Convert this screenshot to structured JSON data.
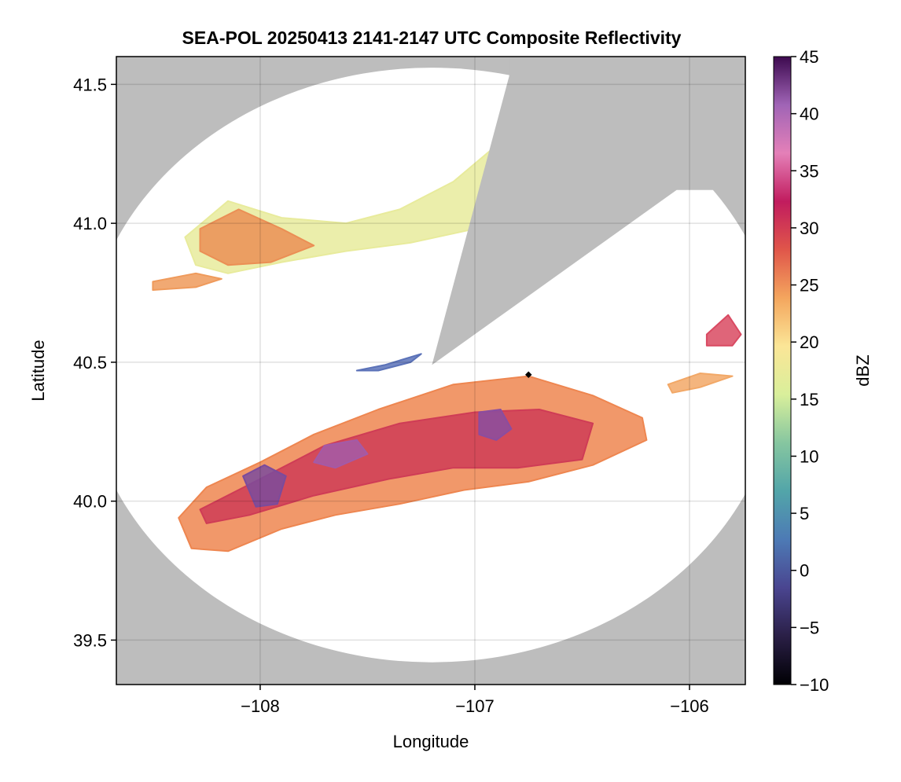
{
  "chart_data": {
    "type": "heatmap",
    "title": "SEA-POL 20250413 2141-2147 UTC Composite Reflectivity",
    "xlabel": "Longitude",
    "ylabel": "Latitude",
    "xlim": [
      -108.67,
      -105.74
    ],
    "ylim": [
      39.34,
      41.6
    ],
    "x_ticks": [
      -108,
      -107,
      -106
    ],
    "x_tick_labels": [
      "−108",
      "−107",
      "−106"
    ],
    "y_ticks": [
      39.5,
      40.0,
      40.5,
      41.0,
      41.5
    ],
    "y_tick_labels": [
      "39.5",
      "40.0",
      "40.5",
      "41.0",
      "41.5"
    ],
    "grid": true,
    "background_color": "#bdbdbd",
    "radar": {
      "center": [
        -107.2,
        40.49
      ],
      "range_lon": 1.62,
      "range_lat": 1.07,
      "blocked_sector": {
        "from": [
          -106.84,
          41.53
        ],
        "to": [
          -106.06,
          41.12
        ]
      },
      "marker": [
        -106.75,
        40.455
      ]
    },
    "echoes": [
      {
        "name": "main-band",
        "polygon": [
          [
            -108.38,
            39.94
          ],
          [
            -108.25,
            40.05
          ],
          [
            -108.0,
            40.14
          ],
          [
            -107.75,
            40.24
          ],
          [
            -107.45,
            40.33
          ],
          [
            -107.1,
            40.42
          ],
          [
            -106.75,
            40.45
          ],
          [
            -106.45,
            40.38
          ],
          [
            -106.22,
            40.3
          ],
          [
            -106.2,
            40.22
          ],
          [
            -106.45,
            40.13
          ],
          [
            -106.75,
            40.07
          ],
          [
            -107.05,
            40.04
          ],
          [
            -107.35,
            39.99
          ],
          [
            -107.65,
            39.95
          ],
          [
            -107.9,
            39.9
          ],
          [
            -108.15,
            39.82
          ],
          [
            -108.32,
            39.83
          ]
        ],
        "dbz": 22,
        "color": "#ee8650"
      },
      {
        "name": "band-core",
        "polygon": [
          [
            -108.28,
            39.97
          ],
          [
            -108.0,
            40.08
          ],
          [
            -107.7,
            40.2
          ],
          [
            -107.35,
            40.28
          ],
          [
            -107.0,
            40.32
          ],
          [
            -106.7,
            40.33
          ],
          [
            -106.45,
            40.28
          ],
          [
            -106.5,
            40.15
          ],
          [
            -106.8,
            40.12
          ],
          [
            -107.1,
            40.12
          ],
          [
            -107.4,
            40.08
          ],
          [
            -107.75,
            40.02
          ],
          [
            -108.05,
            39.95
          ],
          [
            -108.25,
            39.92
          ]
        ],
        "dbz": 30,
        "color": "#cf3c56"
      },
      {
        "name": "core-a",
        "polygon": [
          [
            -108.08,
            40.09
          ],
          [
            -107.98,
            40.13
          ],
          [
            -107.88,
            40.09
          ],
          [
            -107.92,
            39.99
          ],
          [
            -108.02,
            39.98
          ]
        ],
        "dbz": 38,
        "color": "#7b4b9c"
      },
      {
        "name": "core-b",
        "polygon": [
          [
            -106.98,
            40.32
          ],
          [
            -106.88,
            40.33
          ],
          [
            -106.83,
            40.26
          ],
          [
            -106.9,
            40.22
          ],
          [
            -106.98,
            40.24
          ]
        ],
        "dbz": 38,
        "color": "#8a4da0"
      },
      {
        "name": "core-c",
        "polygon": [
          [
            -107.7,
            40.2
          ],
          [
            -107.55,
            40.22
          ],
          [
            -107.5,
            40.17
          ],
          [
            -107.65,
            40.12
          ],
          [
            -107.75,
            40.14
          ]
        ],
        "dbz": 36,
        "color": "#a35aa8"
      },
      {
        "name": "north-band",
        "polygon": [
          [
            -108.35,
            40.95
          ],
          [
            -108.15,
            41.08
          ],
          [
            -107.9,
            41.02
          ],
          [
            -107.6,
            41.0
          ],
          [
            -107.35,
            41.05
          ],
          [
            -107.1,
            41.15
          ],
          [
            -106.9,
            41.28
          ],
          [
            -106.88,
            41.15
          ],
          [
            -107.0,
            40.98
          ],
          [
            -107.3,
            40.93
          ],
          [
            -107.6,
            40.9
          ],
          [
            -107.9,
            40.86
          ],
          [
            -108.15,
            40.82
          ],
          [
            -108.3,
            40.85
          ]
        ],
        "dbz": 16,
        "color": "#e8eb9c"
      },
      {
        "name": "north-core",
        "polygon": [
          [
            -108.28,
            40.98
          ],
          [
            -108.1,
            41.05
          ],
          [
            -107.9,
            40.98
          ],
          [
            -107.75,
            40.92
          ],
          [
            -107.95,
            40.86
          ],
          [
            -108.15,
            40.85
          ],
          [
            -108.28,
            40.9
          ]
        ],
        "dbz": 25,
        "color": "#eb8f55"
      },
      {
        "name": "nw-strip",
        "polygon": [
          [
            -108.5,
            40.79
          ],
          [
            -108.3,
            40.82
          ],
          [
            -108.18,
            40.8
          ],
          [
            -108.3,
            40.77
          ],
          [
            -108.5,
            40.76
          ]
        ],
        "dbz": 25,
        "color": "#ef9a5b"
      },
      {
        "name": "east-cell",
        "polygon": [
          [
            -105.92,
            40.6
          ],
          [
            -105.82,
            40.67
          ],
          [
            -105.76,
            40.6
          ],
          [
            -105.8,
            40.56
          ],
          [
            -105.92,
            40.56
          ]
        ],
        "dbz": 30,
        "color": "#d94a62"
      },
      {
        "name": "east-strip",
        "polygon": [
          [
            -106.1,
            40.42
          ],
          [
            -105.95,
            40.46
          ],
          [
            -105.8,
            40.45
          ],
          [
            -105.95,
            40.41
          ],
          [
            -106.08,
            40.39
          ]
        ],
        "dbz": 24,
        "color": "#f2a867"
      },
      {
        "name": "weak-blue-strip",
        "polygon": [
          [
            -107.55,
            40.47
          ],
          [
            -107.42,
            40.49
          ],
          [
            -107.25,
            40.53
          ],
          [
            -107.3,
            40.5
          ],
          [
            -107.45,
            40.47
          ]
        ],
        "dbz": 3,
        "color": "#5b72b8"
      }
    ],
    "colorbar": {
      "label": "dBZ",
      "min": -10,
      "max": 45,
      "ticks": [
        -10,
        -5,
        0,
        5,
        10,
        15,
        20,
        25,
        30,
        35,
        40,
        45
      ],
      "tick_labels": [
        "−10",
        "−5",
        "0",
        "5",
        "10",
        "15",
        "20",
        "25",
        "30",
        "35",
        "40",
        "45"
      ],
      "colors": [
        "#000004",
        "#2a1f46",
        "#4a4590",
        "#4d7ab5",
        "#52a5a9",
        "#86c6a0",
        "#d9ef9b",
        "#fbe697",
        "#f4a65e",
        "#e0564a",
        "#c11c5e",
        "#e480b8",
        "#a064b6",
        "#3d0a4f"
      ]
    }
  }
}
